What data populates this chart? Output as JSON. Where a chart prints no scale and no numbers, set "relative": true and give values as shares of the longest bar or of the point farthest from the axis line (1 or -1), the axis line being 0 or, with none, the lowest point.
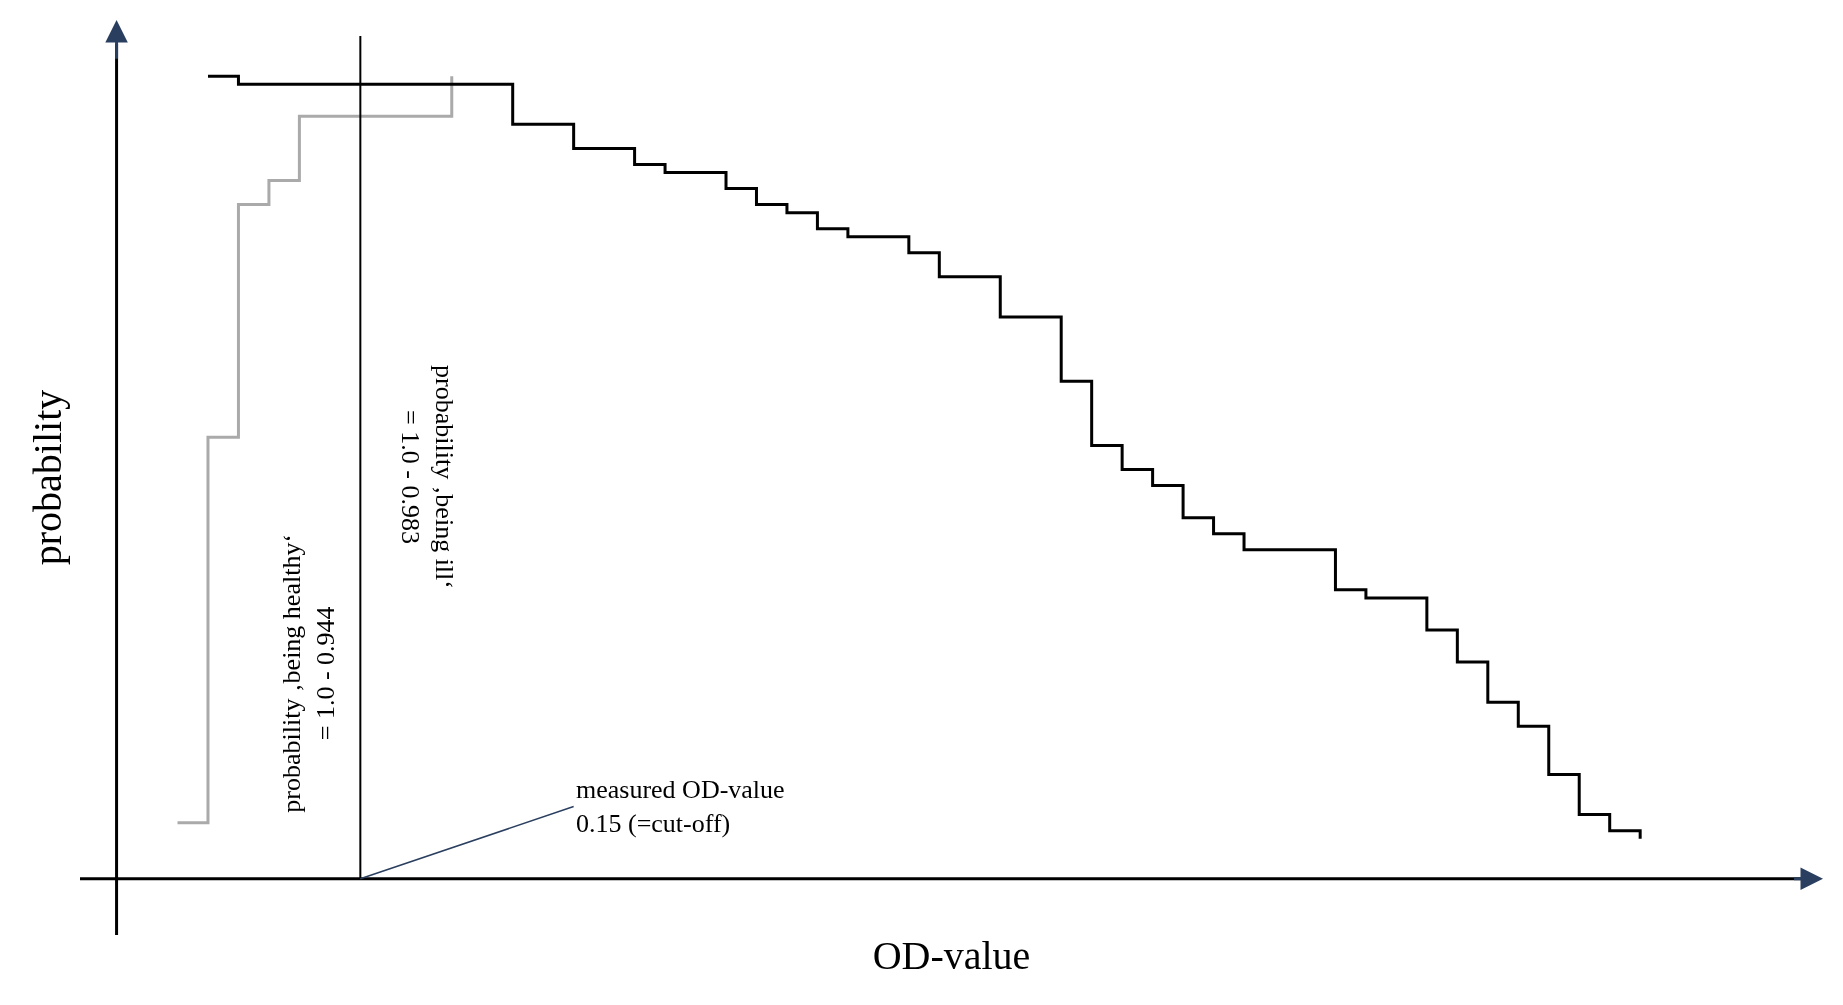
{
  "chart_data": {
    "type": "step",
    "relative": true,
    "xlabel": "OD-value",
    "ylabel": "probability",
    "categories": [
      null,
      null,
      null,
      null,
      null,
      null,
      null,
      null,
      null,
      null,
      null,
      null,
      null,
      null,
      null,
      null,
      null,
      null,
      null,
      null,
      null,
      null,
      null,
      null,
      null,
      null,
      null,
      null,
      null,
      null,
      null,
      null,
      null,
      null,
      null,
      null,
      null,
      null,
      null,
      null,
      null,
      null,
      null,
      null,
      null,
      null,
      null,
      null,
      null
    ],
    "series": [
      {
        "color": "#aaaaaa",
        "values": [
          0.07,
          0.55,
          0.84,
          0.87,
          0.95,
          0.95,
          0.95,
          0.95,
          0.95,
          1.0,
          null,
          null,
          null,
          null,
          null,
          null,
          null,
          null,
          null,
          null,
          null,
          null,
          null,
          null,
          null,
          null,
          null,
          null,
          null,
          null,
          null,
          null,
          null,
          null,
          null,
          null,
          null,
          null,
          null,
          null,
          null,
          null,
          null,
          null,
          null,
          null,
          null,
          null,
          null
        ]
      },
      {
        "color": "#000000",
        "values": [
          null,
          1.0,
          0.99,
          0.99,
          0.99,
          0.99,
          0.99,
          0.99,
          0.99,
          0.99,
          0.99,
          0.94,
          0.94,
          0.91,
          0.91,
          0.89,
          0.88,
          0.88,
          0.86,
          0.84,
          0.83,
          0.81,
          0.8,
          0.8,
          0.78,
          0.75,
          0.75,
          0.7,
          0.7,
          0.62,
          0.54,
          0.51,
          0.49,
          0.45,
          0.43,
          0.41,
          0.41,
          0.41,
          0.36,
          0.35,
          0.35,
          0.31,
          0.27,
          0.22,
          0.19,
          0.13,
          0.08,
          0.06,
          0.05
        ]
      }
    ],
    "annotations": [
      "probability ‚being healthy‘\n= 1.0 - 0.944",
      "probability ‚being ill‘\n= 1.0 - 0.983",
      "measured OD-value\n0.15 (=cut-off)"
    ],
    "marker": "none",
    "line_style": "solid"
  }
}
